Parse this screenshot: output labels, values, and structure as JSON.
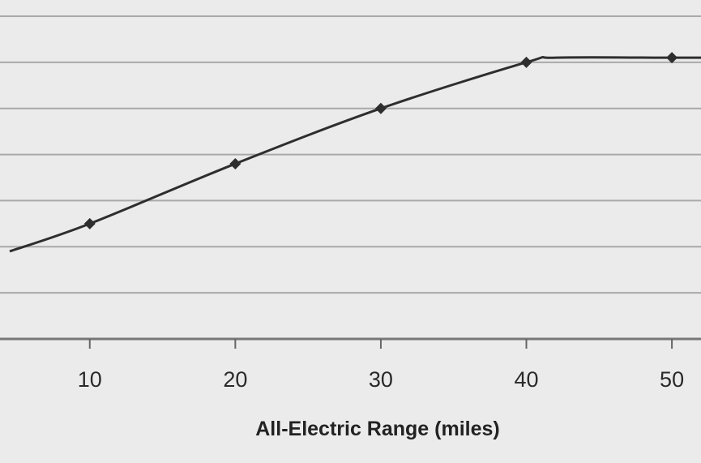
{
  "chart_data": {
    "type": "line",
    "xlabel": "All-Electric Range (miles)",
    "ylabel": "",
    "x_ticks": [
      10,
      20,
      30,
      40,
      50
    ],
    "x_range": [
      4.5,
      52
    ],
    "y_range": [
      0,
      7
    ],
    "grid": true,
    "series": [
      {
        "x": [
          4.5,
          10,
          20,
          30,
          40,
          42,
          50,
          52
        ],
        "y": [
          1.9,
          2.5,
          3.8,
          5.0,
          6.0,
          6.1,
          6.1,
          6.1
        ],
        "markers_at": [
          10,
          20,
          30,
          40,
          50
        ]
      }
    ]
  }
}
